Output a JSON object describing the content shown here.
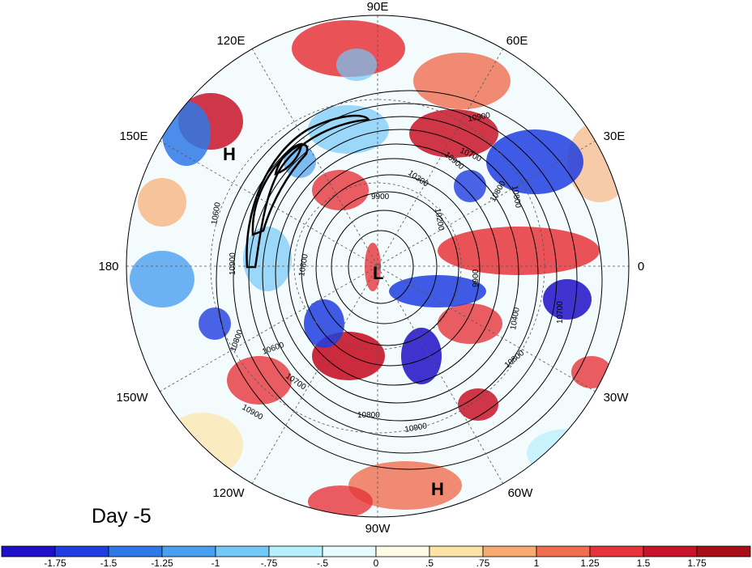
{
  "map": {
    "longitude_labels": [
      "90E",
      "60E",
      "120E",
      "150E",
      "30E",
      "180",
      "0",
      "150W",
      "30W",
      "120W",
      "60W",
      "90W"
    ],
    "contour_labels": [
      "10900",
      "10700",
      "10300",
      "10800",
      "9900",
      "10200",
      "10600",
      "10900",
      "10800",
      "9900",
      "10400",
      "10700",
      "10800",
      "10600",
      "10700",
      "10900",
      "10800",
      "10900",
      "10900",
      "10800",
      "10800"
    ],
    "highs_lows": [
      "H",
      "L",
      "H"
    ],
    "day_label": "Day -5"
  },
  "colorbar": {
    "labels": [
      "-1.75",
      "-1.5",
      "-1.25",
      "-1",
      "-.75",
      "-.5",
      "0",
      ".5",
      ".75",
      "1",
      "1.25",
      "1.5",
      "1.75"
    ],
    "colors": [
      "#1f0fc8",
      "#1f3de0",
      "#2e78e8",
      "#4aa0f0",
      "#74c8f8",
      "#b6f0fc",
      "#e6fcff",
      "#fffbe6",
      "#fde4a6",
      "#f8ab70",
      "#f06e50",
      "#e6343a",
      "#c81428",
      "#a50f15"
    ]
  }
}
